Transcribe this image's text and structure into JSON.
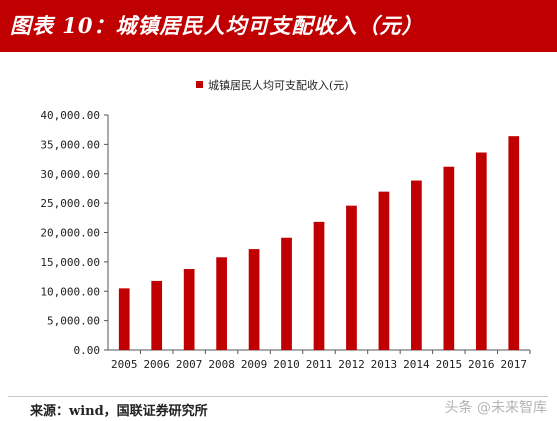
{
  "header": {
    "title": "图表 10：城镇居民人均可支配收入（元）"
  },
  "chart_data": {
    "type": "bar",
    "categories": [
      "2005",
      "2006",
      "2007",
      "2008",
      "2009",
      "2010",
      "2011",
      "2012",
      "2013",
      "2014",
      "2015",
      "2016",
      "2017"
    ],
    "series": [
      {
        "name": "城镇居民人均可支配收入(元)",
        "values": [
          10493,
          11759,
          13786,
          15781,
          17175,
          19109,
          21810,
          24565,
          26955,
          28844,
          31195,
          33616,
          36396
        ]
      }
    ],
    "yticks": [
      "0.00",
      "5,000.00",
      "10,000.00",
      "15,000.00",
      "20,000.00",
      "25,000.00",
      "30,000.00",
      "35,000.00",
      "40,000.00"
    ],
    "ylim": [
      0,
      40000
    ],
    "title": "",
    "xlabel": "",
    "ylabel": "",
    "grid": false,
    "legend": "top-center",
    "bar_color": "#c00000"
  },
  "footer": {
    "source": "来源：wind，国联证券研究所",
    "watermark": "头条 @未来智库"
  }
}
